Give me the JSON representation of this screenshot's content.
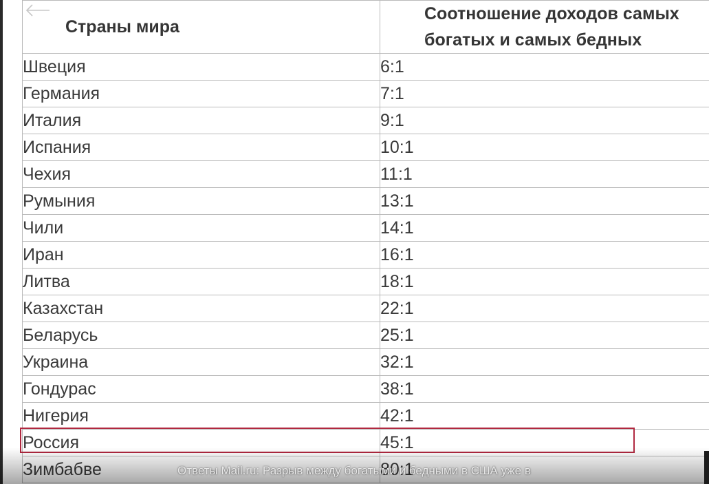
{
  "table": {
    "header": {
      "country": "Страны мира",
      "ratio": "Соотношение доходов самых богатых и  самых бедных"
    },
    "rows": [
      {
        "country": "Швеция",
        "ratio": "6:1"
      },
      {
        "country": "Германия",
        "ratio": "7:1"
      },
      {
        "country": "Италия",
        "ratio": "9:1"
      },
      {
        "country": "Испания",
        "ratio": "10:1"
      },
      {
        "country": "Чехия",
        "ratio": "11:1"
      },
      {
        "country": "Румыния",
        "ratio": "13:1"
      },
      {
        "country": "Чили",
        "ratio": "14:1"
      },
      {
        "country": "Иран",
        "ratio": "16:1"
      },
      {
        "country": "Литва",
        "ratio": "18:1"
      },
      {
        "country": "Казахстан",
        "ratio": "22:1"
      },
      {
        "country": "Беларусь",
        "ratio": "25:1"
      },
      {
        "country": "Украина",
        "ratio": "32:1"
      },
      {
        "country": "Гондурас",
        "ratio": "38:1"
      },
      {
        "country": "Нигерия",
        "ratio": "42:1"
      },
      {
        "country": "Россия",
        "ratio": "45:1"
      },
      {
        "country": "Зимбабве",
        "ratio": "80:1"
      }
    ],
    "highlighted_country": "Россия",
    "highlight_color": "#b0283f"
  },
  "caption": "Ответы Mail.ru: Разрыв между богатыми и бедными в США уже в",
  "icons": {
    "back": "back-arrow-icon"
  }
}
